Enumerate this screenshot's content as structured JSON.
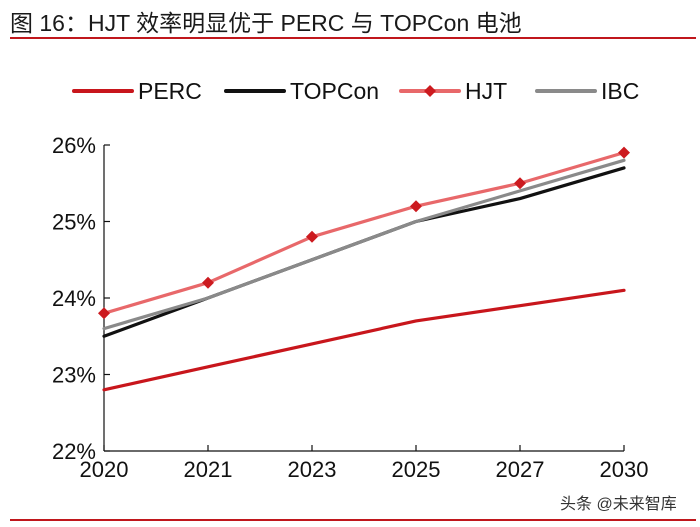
{
  "header": {
    "title": "图 16：HJT 效率明显优于 PERC 与 TOPCon 电池"
  },
  "watermark": {
    "text": "头条 @未来智库"
  },
  "colors": {
    "accent": "#c0171c",
    "perc": "#c8161c",
    "topcon": "#111111",
    "hjt": "#e8686a",
    "hjt_marker": "#cc1a1f",
    "ibc": "#8a8a8a"
  },
  "chart_data": {
    "type": "line",
    "title": "",
    "xlabel": "",
    "ylabel": "",
    "categories": [
      "2020",
      "2021",
      "2023",
      "2025",
      "2027",
      "2030"
    ],
    "ylim": [
      22,
      26
    ],
    "yticks": [
      "22%",
      "23%",
      "24%",
      "25%",
      "26%"
    ],
    "legend_position": "top",
    "grid": false,
    "series": [
      {
        "name": "PERC",
        "key": "perc",
        "marker": "none",
        "values": [
          22.8,
          23.1,
          23.4,
          23.7,
          23.9,
          24.1
        ]
      },
      {
        "name": "TOPCon",
        "key": "topcon",
        "marker": "none",
        "values": [
          23.5,
          24.0,
          24.5,
          25.0,
          25.3,
          25.7
        ]
      },
      {
        "name": "HJT",
        "key": "hjt",
        "marker": "diamond",
        "values": [
          23.8,
          24.2,
          24.8,
          25.2,
          25.5,
          25.9
        ]
      },
      {
        "name": "IBC",
        "key": "ibc",
        "marker": "none",
        "values": [
          23.6,
          24.0,
          24.5,
          25.0,
          25.4,
          25.8
        ]
      }
    ]
  }
}
